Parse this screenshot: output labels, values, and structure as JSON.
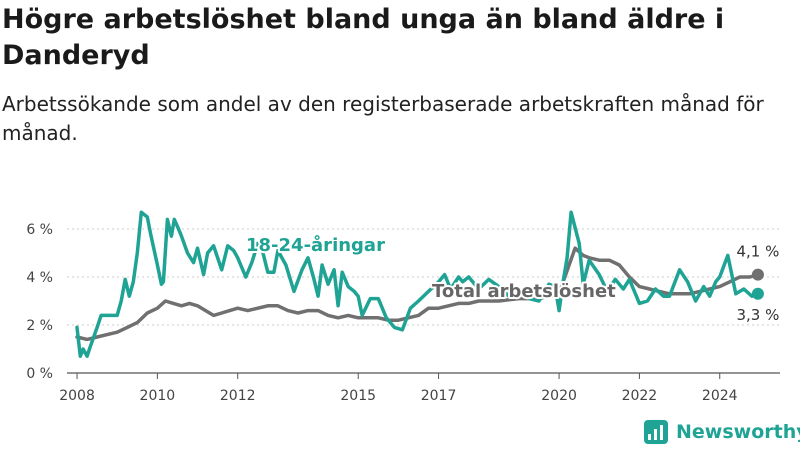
{
  "header": {
    "title": "Högre arbetslöshet bland unga än bland äldre i Danderyd",
    "subtitle": "Arbetssökande som andel av den registerbaserade arbetskraften månad för månad."
  },
  "brand": {
    "name": "Newsworthy",
    "icon": "bar-chart-logo-icon",
    "color": "#1fa394"
  },
  "chart_data": {
    "type": "line",
    "title": "",
    "xlabel": "",
    "ylabel": "",
    "ylim": [
      0,
      7
    ],
    "xlim": [
      2007.75,
      2025.5
    ],
    "grid": true,
    "y_ticks": [
      0,
      2,
      4,
      6
    ],
    "y_tick_labels": [
      "0 %",
      "2 %",
      "4 %",
      "6 %"
    ],
    "x_ticks": [
      2008,
      2010,
      2012,
      2015,
      2017,
      2020,
      2022,
      2024
    ],
    "x_tick_labels": [
      "2008",
      "2010",
      "2012",
      "2015",
      "2017",
      "2020",
      "2022",
      "2024"
    ],
    "series": [
      {
        "name": "18-24-åringar",
        "color": "#1fa394",
        "end_label": "3,3 %",
        "x": [
          2008.0,
          2008.08,
          2008.15,
          2008.25,
          2008.33,
          2008.5,
          2008.6,
          2008.75,
          2009.0,
          2009.1,
          2009.2,
          2009.3,
          2009.4,
          2009.5,
          2009.6,
          2009.75,
          2009.83,
          2010.0,
          2010.1,
          2010.15,
          2010.25,
          2010.35,
          2010.42,
          2010.5,
          2010.6,
          2010.75,
          2010.9,
          2011.0,
          2011.15,
          2011.25,
          2011.4,
          2011.6,
          2011.75,
          2011.9,
          2012.0,
          2012.2,
          2012.35,
          2012.5,
          2012.6,
          2012.75,
          2012.9,
          2013.0,
          2013.2,
          2013.4,
          2013.6,
          2013.75,
          2013.9,
          2014.0,
          2014.1,
          2014.25,
          2014.4,
          2014.5,
          2014.6,
          2014.75,
          2014.9,
          2015.0,
          2015.1,
          2015.3,
          2015.5,
          2015.7,
          2015.9,
          2016.1,
          2016.3,
          2016.5,
          2016.75,
          2017.0,
          2017.15,
          2017.3,
          2017.5,
          2017.6,
          2017.75,
          2018.0,
          2018.25,
          2018.5,
          2018.75,
          2019.0,
          2019.25,
          2019.5,
          2019.75,
          2019.9,
          2020.0,
          2020.1,
          2020.2,
          2020.3,
          2020.5,
          2020.6,
          2020.75,
          2021.0,
          2021.2,
          2021.4,
          2021.6,
          2021.75,
          2022.0,
          2022.2,
          2022.4,
          2022.6,
          2022.75,
          2023.0,
          2023.2,
          2023.4,
          2023.6,
          2023.75,
          2023.9,
          2024.0,
          2024.2,
          2024.4,
          2024.6,
          2024.8,
          2024.95
        ],
        "values": [
          1.9,
          0.7,
          1.0,
          0.7,
          1.1,
          1.9,
          2.4,
          2.4,
          2.4,
          3.0,
          3.9,
          3.2,
          3.8,
          5.0,
          6.7,
          6.5,
          5.8,
          4.5,
          3.7,
          3.8,
          6.4,
          5.7,
          6.4,
          6.1,
          5.7,
          5.0,
          4.6,
          5.2,
          4.1,
          5.0,
          5.3,
          4.3,
          5.3,
          5.1,
          4.8,
          4.0,
          4.6,
          5.4,
          5.2,
          4.2,
          4.2,
          5.1,
          4.5,
          3.4,
          4.3,
          4.8,
          3.9,
          3.2,
          4.5,
          3.7,
          4.3,
          2.8,
          4.2,
          3.6,
          3.4,
          3.2,
          2.4,
          3.1,
          3.1,
          2.3,
          1.9,
          1.8,
          2.7,
          3.0,
          3.4,
          3.8,
          4.1,
          3.5,
          4.0,
          3.8,
          4.0,
          3.5,
          3.9,
          3.6,
          3.2,
          3.4,
          3.1,
          3.0,
          3.7,
          3.6,
          2.6,
          3.8,
          4.8,
          6.7,
          5.4,
          3.7,
          4.7,
          4.1,
          3.4,
          3.9,
          3.5,
          3.9,
          2.9,
          3.0,
          3.5,
          3.2,
          3.2,
          4.3,
          3.8,
          3.0,
          3.6,
          3.2,
          3.8,
          4.0,
          4.9,
          3.3,
          3.5,
          3.2,
          3.3
        ]
      },
      {
        "name": "Total arbetslöshet",
        "color": "#707070",
        "end_label": "4,1 %",
        "x": [
          2008.0,
          2008.25,
          2008.5,
          2008.75,
          2009.0,
          2009.25,
          2009.5,
          2009.75,
          2010.0,
          2010.2,
          2010.4,
          2010.6,
          2010.8,
          2011.0,
          2011.2,
          2011.4,
          2011.6,
          2011.8,
          2012.0,
          2012.25,
          2012.5,
          2012.75,
          2013.0,
          2013.25,
          2013.5,
          2013.75,
          2014.0,
          2014.25,
          2014.5,
          2014.75,
          2015.0,
          2015.25,
          2015.5,
          2015.75,
          2016.0,
          2016.25,
          2016.5,
          2016.75,
          2017.0,
          2017.25,
          2017.5,
          2017.75,
          2018.0,
          2018.5,
          2019.0,
          2019.5,
          2019.75,
          2020.0,
          2020.1,
          2020.25,
          2020.4,
          2020.6,
          2020.75,
          2021.0,
          2021.25,
          2021.5,
          2021.75,
          2022.0,
          2022.25,
          2022.5,
          2022.75,
          2023.0,
          2023.25,
          2023.5,
          2023.75,
          2024.0,
          2024.25,
          2024.5,
          2024.75,
          2024.95
        ],
        "values": [
          1.5,
          1.4,
          1.5,
          1.6,
          1.7,
          1.9,
          2.1,
          2.5,
          2.7,
          3.0,
          2.9,
          2.8,
          2.9,
          2.8,
          2.6,
          2.4,
          2.5,
          2.6,
          2.7,
          2.6,
          2.7,
          2.8,
          2.8,
          2.6,
          2.5,
          2.6,
          2.6,
          2.4,
          2.3,
          2.4,
          2.3,
          2.3,
          2.3,
          2.2,
          2.2,
          2.3,
          2.4,
          2.7,
          2.7,
          2.8,
          2.9,
          2.9,
          3.0,
          3.0,
          3.1,
          3.1,
          3.2,
          3.3,
          3.8,
          4.5,
          5.2,
          4.9,
          4.8,
          4.7,
          4.7,
          4.5,
          4.0,
          3.6,
          3.5,
          3.4,
          3.3,
          3.3,
          3.3,
          3.4,
          3.5,
          3.6,
          3.8,
          4.0,
          4.0,
          4.1
        ]
      }
    ]
  }
}
